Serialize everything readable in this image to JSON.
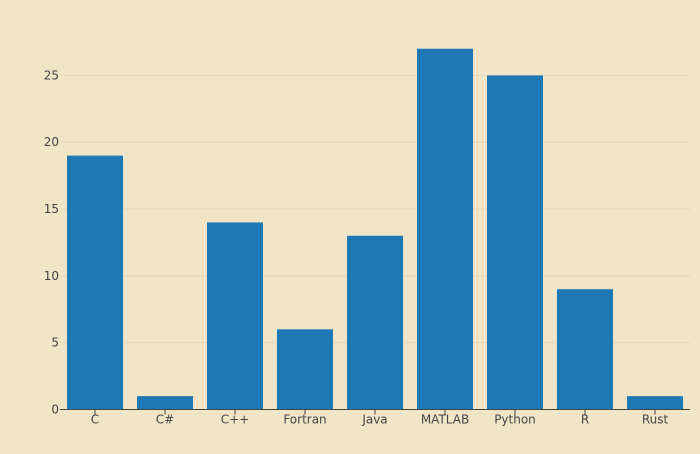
{
  "chart_data": {
    "type": "bar",
    "categories": [
      "C",
      "C#",
      "C++",
      "Fortran",
      "Java",
      "MATLAB",
      "Python",
      "R",
      "Rust"
    ],
    "values": [
      19,
      1,
      14,
      6,
      13,
      27,
      25,
      9,
      1
    ],
    "title": "",
    "xlabel": "",
    "ylabel": "",
    "ylim": [
      0,
      28.4
    ],
    "yticks": [
      0,
      5,
      10,
      15,
      20,
      25
    ],
    "grid": true,
    "legend": "none"
  },
  "colors": {
    "background": "#f1e5c7",
    "bar": "#1f77b4",
    "grid": "#e3d8bb",
    "axis": "#444444",
    "text": "#444444"
  }
}
